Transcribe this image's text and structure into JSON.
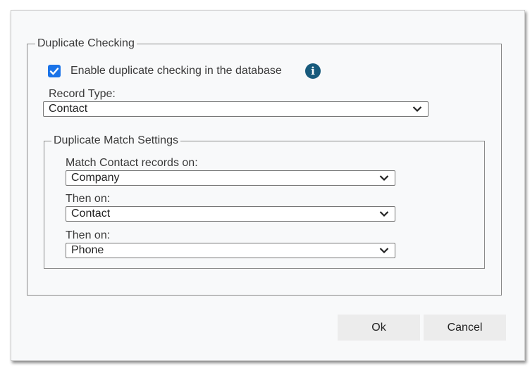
{
  "duplicate_checking": {
    "legend": "Duplicate Checking",
    "enable_checkbox": {
      "label": "Enable duplicate checking in the database",
      "checked": true
    },
    "info_icon": "info-circle-icon",
    "record_type": {
      "label": "Record Type:",
      "value": "Contact"
    },
    "match_settings": {
      "legend": "Duplicate Match Settings",
      "fields": [
        {
          "label": "Match Contact records on:",
          "value": "Company"
        },
        {
          "label": "Then on:",
          "value": "Contact"
        },
        {
          "label": "Then on:",
          "value": "Phone"
        }
      ]
    }
  },
  "buttons": {
    "ok": "Ok",
    "cancel": "Cancel"
  },
  "colors": {
    "checkbox": "#1a73e8",
    "info_icon": "#175a7c"
  }
}
